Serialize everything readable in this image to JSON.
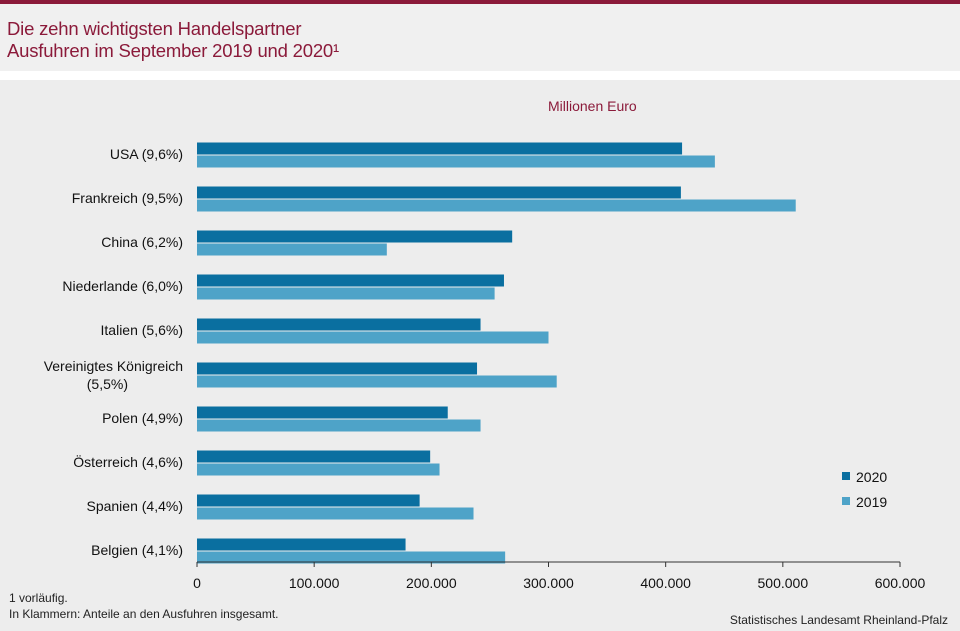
{
  "title": {
    "line1": "Die zehn wichtigsten Handelspartner",
    "line2": "Ausfuhren im September 2019 und 2020¹"
  },
  "unit_label": "Millionen  Euro",
  "footnotes": {
    "fn1": "1 vorläufig.",
    "fn2": "In Klammern: Anteile an den Ausfuhren insgesamt."
  },
  "source": "Statistisches Landesamt Rheinland-Pfalz",
  "colors": {
    "series_2020": "#0a6fa0",
    "series_2019": "#4ea3c8",
    "accent": "#8b1a3a"
  },
  "chart_data": {
    "type": "bar",
    "orientation": "horizontal",
    "categories": [
      [
        "USA (9,6%)"
      ],
      [
        "Frankreich (9,5%)"
      ],
      [
        "China (6,2%)"
      ],
      [
        "Niederlande (6,0%)"
      ],
      [
        "Italien (5,6%)"
      ],
      [
        "Vereinigtes Königreich",
        "(5,5%)"
      ],
      [
        "Polen (4,9%)"
      ],
      [
        "Österreich (4,6%)"
      ],
      [
        "Spanien (4,4%)"
      ],
      [
        "Belgien (4,1%)"
      ]
    ],
    "series": [
      {
        "name": "2020",
        "values": [
          414,
          413,
          269,
          262,
          242,
          239,
          214,
          199,
          190,
          178
        ]
      },
      {
        "name": "2019",
        "values": [
          442,
          511,
          162,
          254,
          300,
          307,
          242,
          207,
          236,
          263
        ]
      }
    ],
    "xlim": [
      0,
      600
    ],
    "xticks": [
      {
        "value": 0,
        "label": "0"
      },
      {
        "value": 100,
        "label": "100.000"
      },
      {
        "value": 200,
        "label": "200.000"
      },
      {
        "value": 300,
        "label": "300.000"
      },
      {
        "value": 400,
        "label": "400.000"
      },
      {
        "value": 500,
        "label": "500.000"
      },
      {
        "value": 600,
        "label": "600.000"
      }
    ],
    "legend_position": "bottom-right",
    "grid": false
  }
}
